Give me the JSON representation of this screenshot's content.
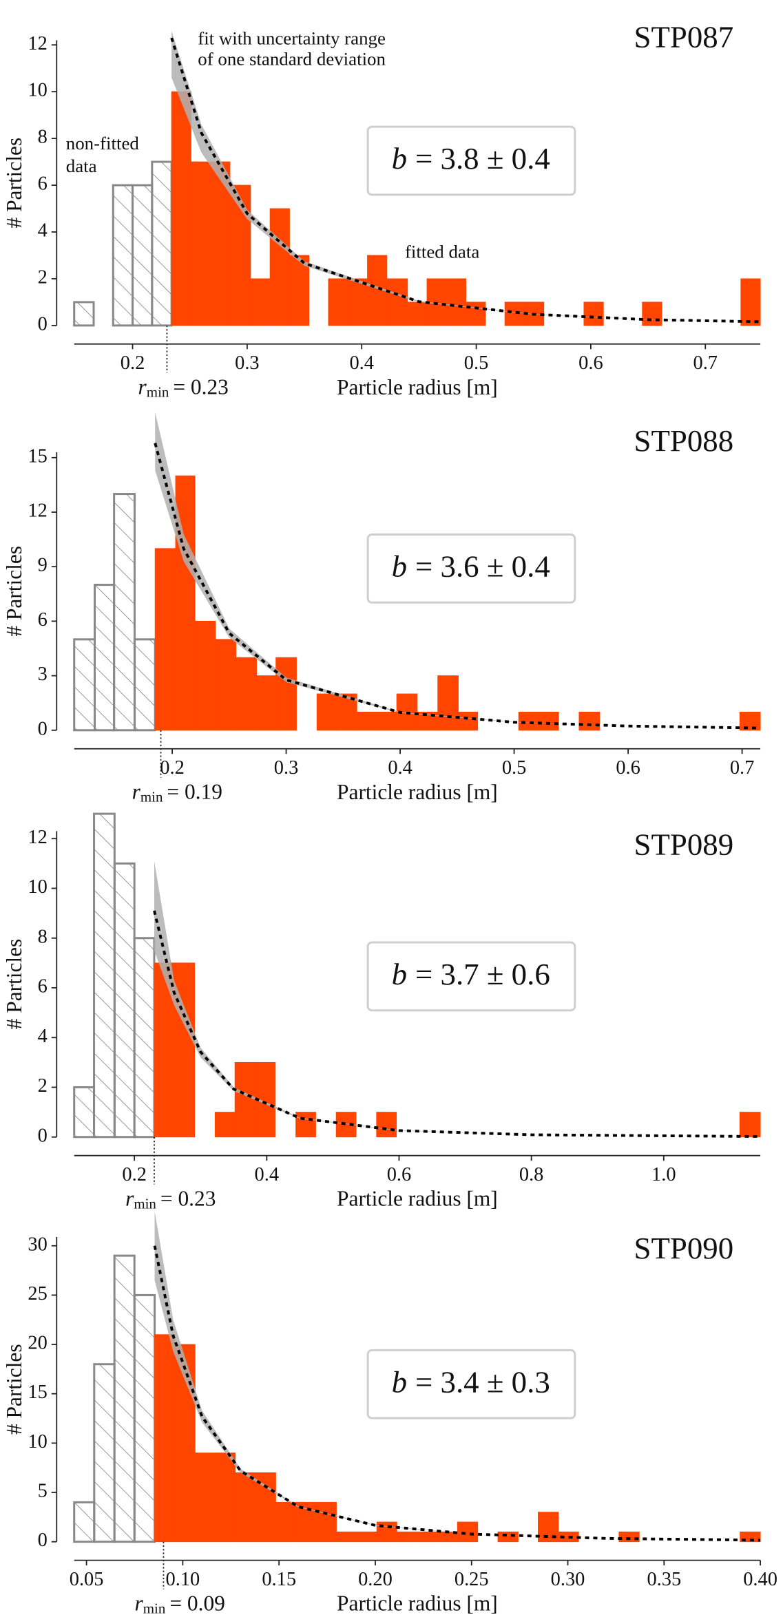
{
  "chart_data": [
    {
      "type": "histogram",
      "title": "STP087",
      "xlabel": "Particle radius [m]",
      "ylabel": "# Particles",
      "xlim": [
        0.149,
        0.748
      ],
      "ylim": [
        0,
        12.2
      ],
      "xticks": [
        0.2,
        0.3,
        0.4,
        0.5,
        0.6,
        0.7
      ],
      "yticks": [
        0,
        2,
        4,
        6,
        8,
        10,
        12
      ],
      "series": [
        {
          "color": "#888888",
          "hatch": true,
          "bins": [
            0.149,
            0.166,
            0.183,
            0.2,
            0.217,
            0.234
          ],
          "counts": [
            1,
            0,
            6,
            6,
            7
          ]
        },
        {
          "color": "#ff4500",
          "hatch": false,
          "bins": [
            0.234,
            0.251,
            0.268,
            0.285,
            0.303,
            0.32,
            0.337,
            0.354,
            0.371,
            0.388,
            0.405,
            0.422,
            0.44,
            0.457,
            0.474,
            0.491,
            0.508,
            0.525,
            0.542,
            0.559,
            0.577,
            0.594,
            0.611,
            0.628,
            0.645,
            0.662,
            0.679,
            0.697,
            0.714,
            0.731,
            0.748
          ],
          "counts": [
            10,
            7,
            7,
            6,
            2,
            5,
            3,
            0,
            2,
            2,
            3,
            2,
            1,
            2,
            2,
            1,
            0,
            1,
            1,
            0,
            0,
            1,
            0,
            0,
            1,
            0,
            0,
            0,
            0,
            2
          ]
        }
      ],
      "fit": {
        "color": "#000000",
        "band_color": "#b0b0b0",
        "x": [
          0.234,
          0.26,
          0.3,
          0.35,
          0.45,
          0.55,
          0.65,
          0.748
        ],
        "y": [
          12.3,
          8.24,
          4.79,
          2.66,
          1.02,
          0.48,
          0.25,
          0.16
        ],
        "upper": [
          12.6,
          8.6,
          4.95,
          2.75,
          1.05,
          0.49,
          0.26,
          0.16
        ],
        "lower": [
          10.6,
          7.4,
          4.55,
          2.55,
          1.0,
          0.47,
          0.25,
          0.16
        ]
      },
      "fit_label": {
        "symbol": "b",
        "text": "= 3.8 ± 0.4"
      },
      "rmin": 0.23,
      "rmin_label": {
        "symbol": "r",
        "subscript": "min",
        "text": "= 0.23"
      },
      "annotations": [
        [
          "fit with uncertainty range",
          "of one standard deviation"
        ],
        [
          "non-fitted",
          "data"
        ],
        [
          "fitted data"
        ]
      ]
    },
    {
      "type": "histogram",
      "title": "STP088",
      "xlabel": "Particle radius [m]",
      "ylabel": "# Particles",
      "xlim": [
        0.114,
        0.716
      ],
      "ylim": [
        0,
        15.3
      ],
      "xticks": [
        0.2,
        0.3,
        0.4,
        0.5,
        0.6,
        0.7
      ],
      "yticks": [
        0,
        3,
        6,
        9,
        12,
        15
      ],
      "series": [
        {
          "color": "#888888",
          "hatch": true,
          "bins": [
            0.114,
            0.132,
            0.149,
            0.167,
            0.185
          ],
          "counts": [
            5,
            8,
            13,
            5
          ]
        },
        {
          "color": "#ff4500",
          "hatch": false,
          "bins": [
            0.185,
            0.203,
            0.22,
            0.238,
            0.256,
            0.274,
            0.291,
            0.309,
            0.327,
            0.344,
            0.362,
            0.38,
            0.397,
            0.415,
            0.433,
            0.451,
            0.468,
            0.486,
            0.504,
            0.521,
            0.539,
            0.557,
            0.575,
            0.592,
            0.61,
            0.628,
            0.645,
            0.663,
            0.681,
            0.698,
            0.716
          ],
          "counts": [
            10,
            14,
            6,
            5,
            4,
            3,
            4,
            0,
            2,
            2,
            1,
            1,
            2,
            1,
            3,
            1,
            0,
            0,
            1,
            1,
            0,
            1,
            0,
            0,
            0,
            0,
            0,
            0,
            0,
            1
          ]
        }
      ],
      "fit": {
        "color": "#000000",
        "band_color": "#b0b0b0",
        "x": [
          0.185,
          0.21,
          0.25,
          0.3,
          0.4,
          0.5,
          0.6,
          0.716
        ],
        "y": [
          15.8,
          10.0,
          5.34,
          2.77,
          0.98,
          0.44,
          0.23,
          0.12
        ],
        "upper": [
          17.5,
          10.8,
          5.6,
          2.9,
          1.0,
          0.45,
          0.23,
          0.12
        ],
        "lower": [
          14.3,
          9.3,
          5.1,
          2.65,
          0.95,
          0.43,
          0.23,
          0.12
        ]
      },
      "fit_label": {
        "symbol": "b",
        "text": "= 3.6 ± 0.4"
      },
      "rmin": 0.19,
      "rmin_label": {
        "symbol": "r",
        "subscript": "min",
        "text": "= 0.19"
      },
      "annotations": []
    },
    {
      "type": "histogram",
      "title": "STP089",
      "xlabel": "Particle radius [m]",
      "ylabel": "# Particles",
      "xlim": [
        0.109,
        1.146
      ],
      "ylim": [
        0,
        12.3
      ],
      "xticks": [
        0.2,
        0.4,
        0.6,
        0.8,
        {
          "value": 1.0,
          "label": "1.0"
        }
      ],
      "yticks": [
        0,
        2,
        4,
        6,
        8,
        10,
        12
      ],
      "series": [
        {
          "color": "#888888",
          "hatch": true,
          "bins": [
            0.109,
            0.139,
            0.17,
            0.2,
            0.23
          ],
          "counts": [
            2,
            13,
            11,
            8
          ]
        },
        {
          "color": "#ff4500",
          "hatch": false,
          "bins": [
            0.23,
            0.261,
            0.291,
            0.322,
            0.352,
            0.383,
            0.413,
            0.444,
            0.474,
            0.505,
            0.535,
            0.566,
            0.596,
            0.627,
            0.657,
            0.688,
            0.718,
            0.749,
            0.78,
            0.81,
            0.841,
            0.871,
            0.902,
            0.932,
            0.963,
            0.993,
            1.024,
            1.054,
            1.085,
            1.115,
            1.146
          ],
          "counts": [
            7,
            7,
            0,
            1,
            3,
            3,
            0,
            1,
            0,
            1,
            0,
            1,
            0,
            0,
            0,
            0,
            0,
            0,
            0,
            0,
            0,
            0,
            0,
            0,
            0,
            0,
            0,
            0,
            0,
            1
          ]
        }
      ],
      "fit": {
        "color": "#000000",
        "band_color": "#b0b0b0",
        "x": [
          0.23,
          0.26,
          0.3,
          0.35,
          0.45,
          0.6,
          0.8,
          1.146
        ],
        "y": [
          9.1,
          5.81,
          3.42,
          1.93,
          0.76,
          0.26,
          0.09,
          0.02
        ],
        "upper": [
          11.1,
          6.3,
          3.6,
          2.0,
          0.78,
          0.27,
          0.09,
          0.02
        ],
        "lower": [
          7.5,
          5.3,
          3.2,
          1.85,
          0.74,
          0.25,
          0.09,
          0.02
        ]
      },
      "fit_label": {
        "symbol": "b",
        "text": "= 3.7 ± 0.6"
      },
      "rmin": 0.23,
      "rmin_label": {
        "symbol": "r",
        "subscript": "min",
        "text": "= 0.23"
      },
      "annotations": []
    },
    {
      "type": "histogram",
      "title": "STP090",
      "xlabel": "Particle radius [m]",
      "ylabel": "# Particles",
      "xlim": [
        0.0436,
        0.4
      ],
      "ylim": [
        0,
        30.9
      ],
      "xticks": [
        0.05,
        {
          "value": 0.1,
          "label": "0.10"
        },
        0.15,
        {
          "value": 0.2,
          "label": "0.20"
        },
        0.25,
        {
          "value": 0.3,
          "label": "0.30"
        },
        0.35,
        {
          "value": 0.4,
          "label": "0.40"
        }
      ],
      "yticks": [
        0,
        5,
        10,
        15,
        20,
        25,
        30
      ],
      "series": [
        {
          "color": "#888888",
          "hatch": true,
          "bins": [
            0.0436,
            0.054,
            0.0645,
            0.0749,
            0.0854
          ],
          "counts": [
            4,
            18,
            29,
            25
          ]
        },
        {
          "color": "#ff4500",
          "hatch": false,
          "bins": [
            0.0854,
            0.0959,
            0.1064,
            0.1169,
            0.1273,
            0.1378,
            0.1483,
            0.1588,
            0.1693,
            0.1798,
            0.1903,
            0.2008,
            0.2112,
            0.2217,
            0.2322,
            0.2427,
            0.2532,
            0.2637,
            0.2742,
            0.2846,
            0.2951,
            0.3056,
            0.3161,
            0.3266,
            0.3371,
            0.3476,
            0.3581,
            0.3685,
            0.379,
            0.3895,
            0.4
          ],
          "counts": [
            21,
            20,
            9,
            9,
            7,
            7,
            4,
            4,
            4,
            1,
            1,
            2,
            1,
            1,
            1,
            2,
            0,
            1,
            0,
            3,
            1,
            0,
            0,
            1,
            0,
            0,
            0,
            0,
            0,
            1
          ]
        }
      ],
      "fit": {
        "color": "#000000",
        "band_color": "#b0b0b0",
        "x": [
          0.0854,
          0.095,
          0.11,
          0.13,
          0.16,
          0.2,
          0.25,
          0.32,
          0.4
        ],
        "y": [
          30,
          20.9,
          12.7,
          7.19,
          3.55,
          1.66,
          0.78,
          0.34,
          0.16
        ],
        "upper": [
          33.5,
          22.5,
          13.3,
          7.4,
          3.6,
          1.7,
          0.78,
          0.34,
          0.16
        ],
        "lower": [
          26.5,
          19.3,
          12.1,
          7.0,
          3.5,
          1.62,
          0.77,
          0.34,
          0.16
        ]
      },
      "fit_label": {
        "symbol": "b",
        "text": "= 3.4 ± 0.3"
      },
      "rmin": 0.09,
      "rmin_label": {
        "symbol": "r",
        "subscript": "min",
        "text": "= 0.09"
      },
      "annotations": []
    }
  ]
}
